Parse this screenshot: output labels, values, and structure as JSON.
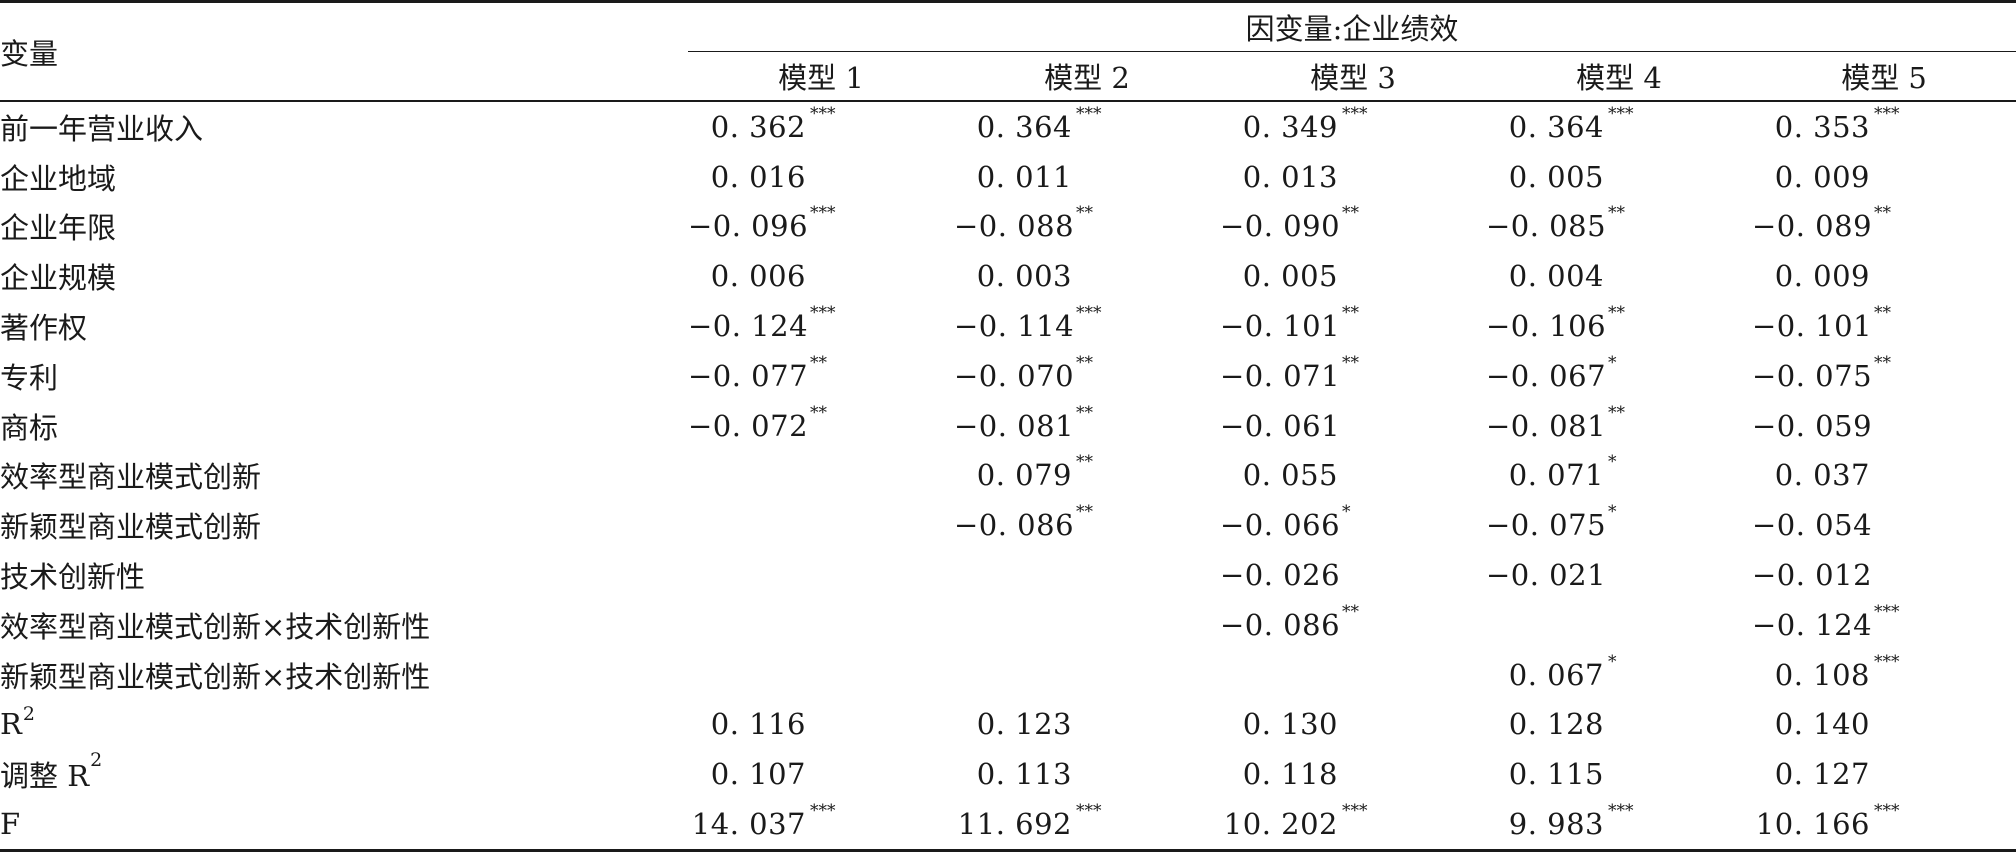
{
  "table": {
    "variable_header": "变量",
    "dependent_header": "因变量:企业绩效",
    "models": [
      "模型 1",
      "模型 2",
      "模型 3",
      "模型 4",
      "模型 5"
    ],
    "rows": [
      {
        "var": "前一年营业收入",
        "cells": [
          {
            "v": "0. 362",
            "s": "***"
          },
          {
            "v": "0. 364",
            "s": "***"
          },
          {
            "v": "0. 349",
            "s": "***"
          },
          {
            "v": "0. 364",
            "s": "***"
          },
          {
            "v": "0. 353",
            "s": "***"
          }
        ]
      },
      {
        "var": "企业地域",
        "cells": [
          {
            "v": "0. 016",
            "s": ""
          },
          {
            "v": "0. 011",
            "s": ""
          },
          {
            "v": "0. 013",
            "s": ""
          },
          {
            "v": "0. 005",
            "s": ""
          },
          {
            "v": "0. 009",
            "s": ""
          }
        ]
      },
      {
        "var": "企业年限",
        "cells": [
          {
            "v": "−0. 096",
            "s": "***"
          },
          {
            "v": "−0. 088",
            "s": "**"
          },
          {
            "v": "−0. 090",
            "s": "**"
          },
          {
            "v": "−0. 085",
            "s": "**"
          },
          {
            "v": "−0. 089",
            "s": "**"
          }
        ]
      },
      {
        "var": "企业规模",
        "cells": [
          {
            "v": "0. 006",
            "s": ""
          },
          {
            "v": "0. 003",
            "s": ""
          },
          {
            "v": "0. 005",
            "s": ""
          },
          {
            "v": "0. 004",
            "s": ""
          },
          {
            "v": "0. 009",
            "s": ""
          }
        ]
      },
      {
        "var": "著作权",
        "cells": [
          {
            "v": "−0. 124",
            "s": "***"
          },
          {
            "v": "−0. 114",
            "s": "***"
          },
          {
            "v": "−0. 101",
            "s": "**"
          },
          {
            "v": "−0. 106",
            "s": "**"
          },
          {
            "v": "−0. 101",
            "s": "**"
          }
        ]
      },
      {
        "var": "专利",
        "cells": [
          {
            "v": "−0. 077",
            "s": "**"
          },
          {
            "v": "−0. 070",
            "s": "**"
          },
          {
            "v": "−0. 071",
            "s": "**"
          },
          {
            "v": "−0. 067",
            "s": "*"
          },
          {
            "v": "−0. 075",
            "s": "**"
          }
        ]
      },
      {
        "var": "商标",
        "cells": [
          {
            "v": "−0. 072",
            "s": "**"
          },
          {
            "v": "−0. 081",
            "s": "**"
          },
          {
            "v": "−0. 061",
            "s": ""
          },
          {
            "v": "−0. 081",
            "s": "**"
          },
          {
            "v": "−0. 059",
            "s": ""
          }
        ]
      },
      {
        "var": "效率型商业模式创新",
        "cells": [
          {
            "v": "",
            "s": ""
          },
          {
            "v": "0. 079",
            "s": "**"
          },
          {
            "v": "0. 055",
            "s": ""
          },
          {
            "v": "0. 071",
            "s": "*"
          },
          {
            "v": "0. 037",
            "s": ""
          }
        ]
      },
      {
        "var": "新颖型商业模式创新",
        "cells": [
          {
            "v": "",
            "s": ""
          },
          {
            "v": "−0. 086",
            "s": "**"
          },
          {
            "v": "−0. 066",
            "s": "*"
          },
          {
            "v": "−0. 075",
            "s": "*"
          },
          {
            "v": "−0. 054",
            "s": ""
          }
        ]
      },
      {
        "var": "技术创新性",
        "cells": [
          {
            "v": "",
            "s": ""
          },
          {
            "v": "",
            "s": ""
          },
          {
            "v": "−0. 026",
            "s": ""
          },
          {
            "v": "−0. 021",
            "s": ""
          },
          {
            "v": "−0. 012",
            "s": ""
          }
        ]
      },
      {
        "var": "效率型商业模式创新×技术创新性",
        "cells": [
          {
            "v": "",
            "s": ""
          },
          {
            "v": "",
            "s": ""
          },
          {
            "v": "−0. 086",
            "s": "**"
          },
          {
            "v": "",
            "s": ""
          },
          {
            "v": "−0. 124",
            "s": "***"
          }
        ]
      },
      {
        "var": "新颖型商业模式创新×技术创新性",
        "cells": [
          {
            "v": "",
            "s": ""
          },
          {
            "v": "",
            "s": ""
          },
          {
            "v": "",
            "s": ""
          },
          {
            "v": "0. 067",
            "s": "*"
          },
          {
            "v": "0. 108",
            "s": "***"
          }
        ]
      },
      {
        "var": "R",
        "var_sup": "2",
        "cells": [
          {
            "v": "0. 116",
            "s": ""
          },
          {
            "v": "0. 123",
            "s": ""
          },
          {
            "v": "0. 130",
            "s": ""
          },
          {
            "v": "0. 128",
            "s": ""
          },
          {
            "v": "0. 140",
            "s": ""
          }
        ]
      },
      {
        "var": "调整 R",
        "var_sup": "2",
        "cells": [
          {
            "v": "0. 107",
            "s": ""
          },
          {
            "v": "0. 113",
            "s": ""
          },
          {
            "v": "0. 118",
            "s": ""
          },
          {
            "v": "0. 115",
            "s": ""
          },
          {
            "v": "0. 127",
            "s": ""
          }
        ]
      },
      {
        "var": "F",
        "cells": [
          {
            "v": "14. 037",
            "s": "***"
          },
          {
            "v": "11. 692",
            "s": "***"
          },
          {
            "v": "10. 202",
            "s": "***"
          },
          {
            "v": "9. 983",
            "s": "***"
          },
          {
            "v": "10. 166",
            "s": "***"
          }
        ]
      }
    ]
  }
}
